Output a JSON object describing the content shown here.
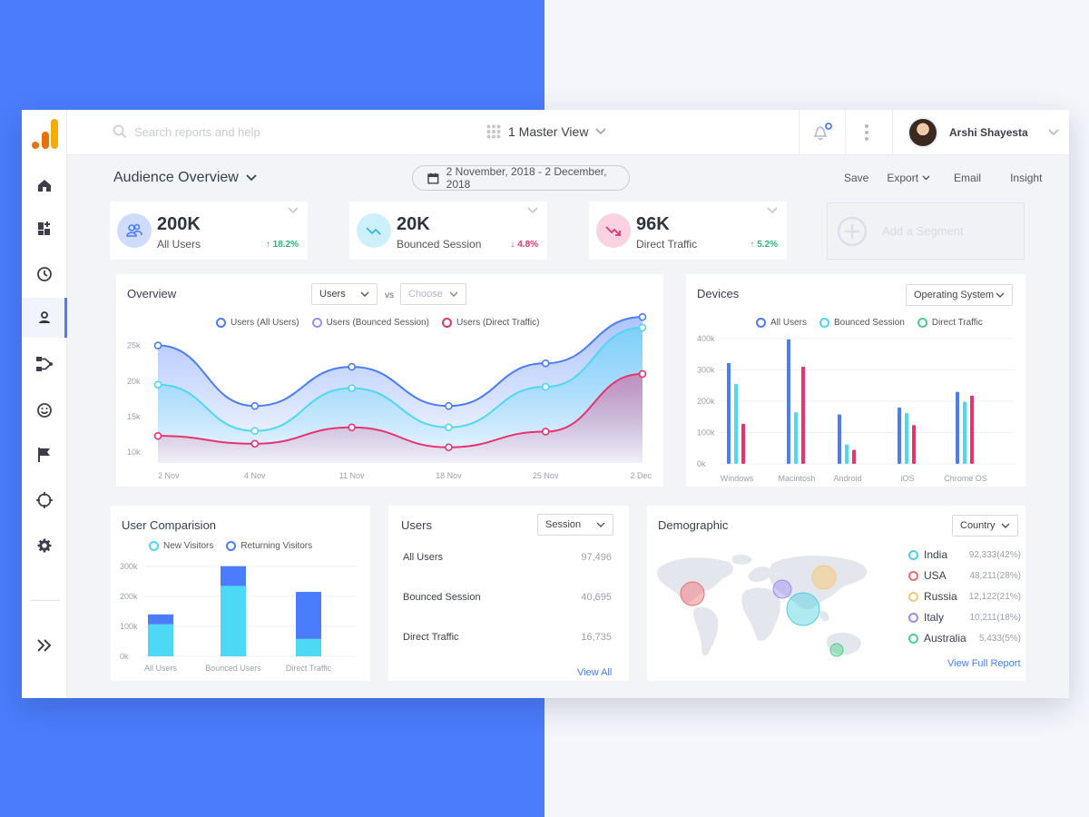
{
  "search": {
    "placeholder": "Search reports and help"
  },
  "header": {
    "view_label": "1 Master View",
    "user_name": "Arshi Shayesta"
  },
  "sidebar": {
    "items": [
      {
        "icon": "home-icon"
      },
      {
        "icon": "dashboard-add-icon"
      },
      {
        "icon": "clock-icon"
      },
      {
        "icon": "person-icon",
        "active": true
      },
      {
        "icon": "flow-icon"
      },
      {
        "icon": "smiley-icon"
      },
      {
        "icon": "flag-icon"
      },
      {
        "icon": "target-icon"
      },
      {
        "icon": "gear-icon"
      },
      {
        "icon": "double-chevron-right-icon"
      }
    ]
  },
  "page": {
    "title": "Audience Overview",
    "date_range": "2 November, 2018 - 2 December, 2018",
    "actions": [
      "Save",
      "Export",
      "Email",
      "Insight"
    ]
  },
  "kpis": [
    {
      "value": "200K",
      "label": "All Users",
      "change": "18.2%",
      "direction": "up",
      "color": "#4a7cfb"
    },
    {
      "value": "20K",
      "label": "Bounced Session",
      "change": "4.8%",
      "direction": "down",
      "color": "#4fc3f7"
    },
    {
      "value": "96K",
      "label": "Direct Traffic",
      "change": "5.2%",
      "direction": "up",
      "color": "#e8336f"
    }
  ],
  "segment": {
    "label": "Add a Segment"
  },
  "overview": {
    "title": "Overview",
    "select1": "Users",
    "vs": "vs",
    "select2": "Choose"
  },
  "devices": {
    "title": "Devices",
    "select": "Operating System"
  },
  "user_comparison": {
    "title": "User Comparision"
  },
  "users_card": {
    "title": "Users",
    "select": "Session",
    "rows": [
      {
        "label": "All Users",
        "value": "97,496"
      },
      {
        "label": "Bounced Session",
        "value": "40,695"
      },
      {
        "label": "Direct Traffic",
        "value": "16,735"
      }
    ],
    "link": "View All"
  },
  "demographic": {
    "title": "Demographic",
    "select": "Country",
    "rows": [
      {
        "country": "India",
        "value": "92,333(42%)",
        "color": "#4dd0e1"
      },
      {
        "country": "USA",
        "value": "48,211(28%)",
        "color": "#ef6c6c"
      },
      {
        "country": "Russia",
        "value": "12,122(21%)",
        "color": "#f6c97a"
      },
      {
        "country": "Italy",
        "value": "10,211(18%)",
        "color": "#9b8cf0"
      },
      {
        "country": "Australia",
        "value": "5,433(5%)",
        "color": "#4cd08a"
      }
    ],
    "link": "View Full Report"
  },
  "chart_data": [
    {
      "type": "area",
      "id": "overview",
      "x": [
        "2 Nov",
        "4 Nov",
        "11 Nov",
        "18 Nov",
        "25 Nov",
        "2 Dec"
      ],
      "y_ticks": [
        "25k",
        "20k",
        "15k",
        "10k"
      ],
      "ylim": [
        8.5,
        28
      ],
      "series": [
        {
          "name": "Users (All Users)",
          "color": "#4a7cfb",
          "values": [
            25,
            16.5,
            22,
            16.5,
            22.5,
            29
          ]
        },
        {
          "name": "Users (Bounced Session)",
          "color": "#4dd8f5",
          "values": [
            19.5,
            13,
            19,
            13.5,
            19.2,
            27.5
          ]
        },
        {
          "name": "Users (Direct Traffic)",
          "color": "#e8336f",
          "values": [
            12.3,
            11.2,
            13.5,
            10.7,
            12.9,
            21
          ]
        }
      ]
    },
    {
      "type": "bar",
      "id": "devices",
      "categories": [
        "Windows",
        "Macintosh",
        "Android",
        "iOS",
        "Chrome OS"
      ],
      "y_ticks": [
        "400k",
        "300k",
        "200k",
        "100k",
        "0k"
      ],
      "ylim": [
        0,
        400
      ],
      "series": [
        {
          "name": "All Users",
          "color": "#4a7cfb",
          "values": [
            322,
            398,
            158,
            180,
            230
          ]
        },
        {
          "name": "Bounced Session",
          "color": "#4dd8f5",
          "values": [
            255,
            165,
            62,
            162,
            198
          ]
        },
        {
          "name": "Direct Traffic",
          "color": "#e8336f",
          "values": [
            128,
            310,
            45,
            124,
            218
          ]
        }
      ]
    },
    {
      "type": "bar",
      "id": "user_comparison",
      "stacked": true,
      "categories": [
        "All Users",
        "Bounced Users",
        "Direct Traffic"
      ],
      "y_ticks": [
        "300k",
        "200k",
        "100k",
        "0k"
      ],
      "ylim": [
        0,
        300
      ],
      "series": [
        {
          "name": "New Visitors",
          "color": "#4dd8f5",
          "values": [
            107,
            235,
            58
          ]
        },
        {
          "name": "Returning Visitors",
          "color": "#4a7cfb",
          "values": [
            33,
            66,
            157
          ]
        }
      ]
    }
  ]
}
